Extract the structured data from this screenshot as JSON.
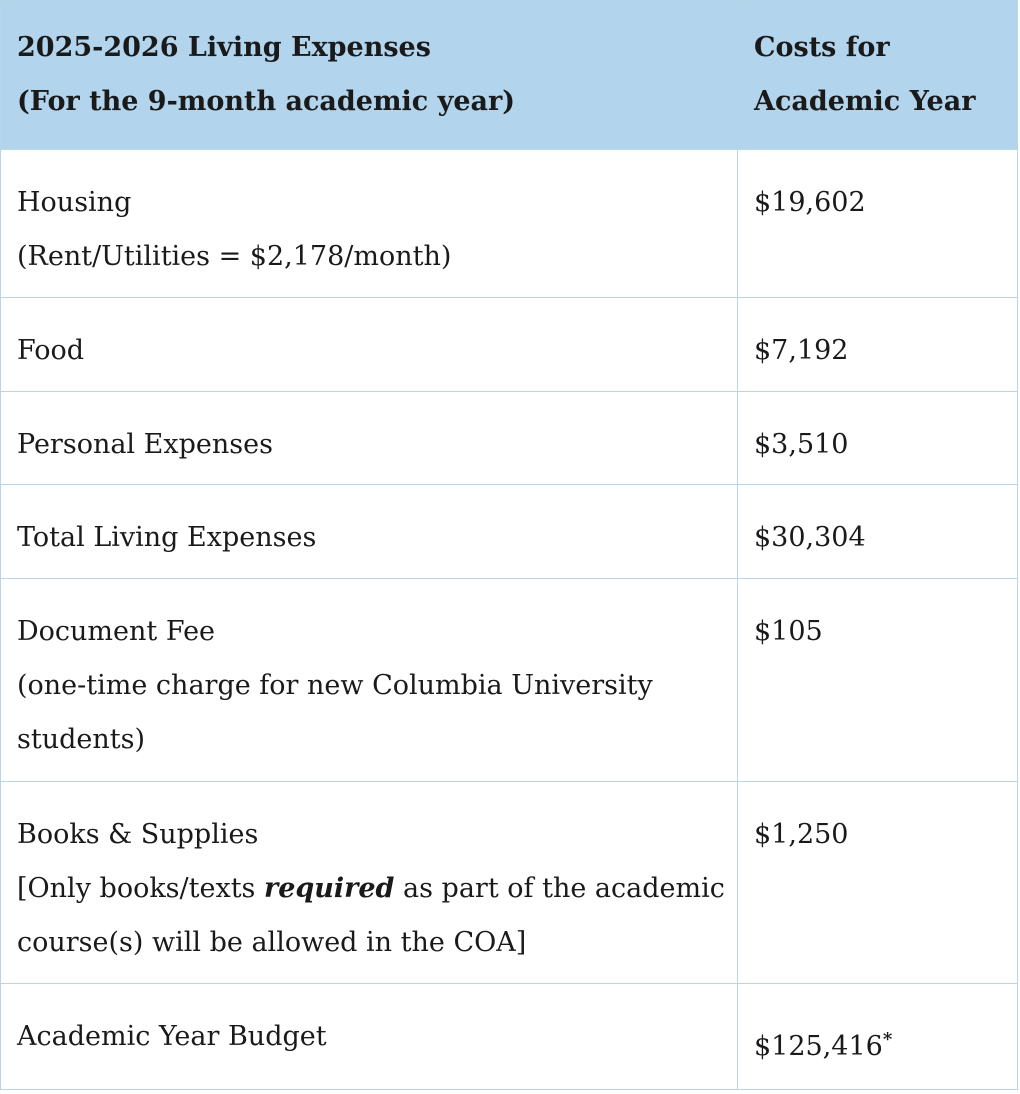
{
  "table": {
    "header": {
      "col1_line1": "2025-2026 Living Expenses",
      "col1_line2": "(For the 9-month academic year)",
      "col2_line1": "Costs for",
      "col2_line2": "Academic Year"
    },
    "rows": [
      {
        "label_line1": "Housing",
        "label_line2": "(Rent/Utilities = $2,178/month)",
        "value": "$19,602"
      },
      {
        "label": "Food",
        "value": "$7,192"
      },
      {
        "label": "Personal Expenses",
        "value": "$3,510"
      },
      {
        "label": "Total Living Expenses",
        "value": "$30,304"
      },
      {
        "label_line1": "Document Fee",
        "label_line2": "(one-time charge for new Columbia University",
        "label_line3": "students)",
        "value": "$105"
      },
      {
        "label_line1": "Books & Supplies",
        "label_line2_pre": "[Only books/texts ",
        "label_line2_em": "required",
        "label_line2_post": " as part of the academic",
        "label_line3": "course(s) will be allowed in the COA]",
        "value": "$1,250"
      },
      {
        "label": "Academic Year Budget",
        "value": "$125,416",
        "footnote_mark": "*"
      }
    ]
  },
  "colors": {
    "header_bg": "#b2d4ec",
    "border": "#b8d6ea"
  }
}
